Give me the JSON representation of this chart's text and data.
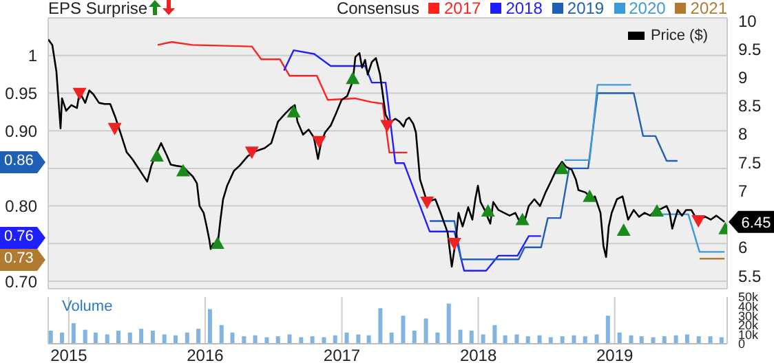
{
  "chart_data": [
    {
      "type": "line",
      "annotations": [
        "EPS Surprise",
        "0.86",
        "0.76",
        "0.73"
      ],
      "legend_title": "Consensus",
      "legend": "top",
      "grid": true,
      "tick_labels": "y",
      "xlim": [
        "2014-11-07",
        "2019-10-29"
      ],
      "xticks": [
        "2015",
        "2016",
        "2017",
        "2018",
        "2019"
      ],
      "ylim": [
        0.69,
        1.05
      ],
      "yticks": [
        1,
        0.95,
        {
          "value": 0.9,
          "label": "0.90"
        },
        {
          "value": 0.85,
          "label": null
        },
        {
          "value": 0.8,
          "label": "0.80"
        },
        {
          "value": 0.75,
          "label": null
        },
        {
          "value": 0.7,
          "label": "0.70"
        }
      ],
      "y2lim": [
        5.27,
        10.05
      ],
      "y2ticks": [
        10,
        9.5,
        9,
        8.5,
        8,
        7.5,
        7,
        6,
        5.5
      ],
      "series": [
        {
          "name": "2017",
          "color": "#ff2020",
          "x": [
            "2015-08-27",
            "2015-10-04",
            "2015-11-28",
            "2016-05-05",
            "2016-05-30",
            "2016-07-19",
            "2016-08-14",
            "2016-10-26",
            "2016-11-24",
            "2017-02-06",
            "2017-03-22",
            "2017-04-20",
            "2017-05-08",
            "2017-06-25"
          ],
          "values": [
            1.014,
            1.018,
            1.014,
            1.012,
            0.995,
            0.995,
            0.973,
            0.973,
            0.941,
            0.943,
            0.938,
            0.936,
            0.871,
            0.871
          ]
        },
        {
          "name": "2018",
          "color": "#2020ff",
          "x": [
            "2016-07-30",
            "2016-08-25",
            "2016-10-19",
            "2016-12-02",
            "2017-03-04",
            "2017-03-22",
            "2017-04-28",
            "2017-05-24",
            "2017-06-16",
            "2017-08-24",
            "2017-10-29",
            "2017-11-24",
            "2018-01-22",
            "2018-02-24",
            "2018-04-16",
            "2018-05-16",
            "2018-06-18"
          ],
          "values": [
            0.98,
            1.007,
            1.002,
            0.986,
            0.986,
            0.964,
            0.964,
            0.857,
            0.857,
            0.766,
            0.766,
            0.714,
            0.714,
            0.734,
            0.734,
            0.76,
            0.76
          ]
        },
        {
          "name": "2019",
          "color": "#1f5fb4",
          "x": [
            "2017-08-24",
            "2017-10-29",
            "2017-11-16",
            "2018-04-19",
            "2018-05-05",
            "2018-06-18",
            "2018-07-06",
            "2018-08-09",
            "2018-09-01",
            "2018-10-22",
            "2018-11-16",
            "2019-02-21",
            "2019-03-18",
            "2019-04-20",
            "2019-05-20",
            "2019-06-18"
          ],
          "values": [
            0.78,
            0.78,
            0.729,
            0.729,
            0.745,
            0.745,
            0.784,
            0.784,
            0.85,
            0.85,
            0.95,
            0.95,
            0.893,
            0.893,
            0.86,
            0.86
          ]
        },
        {
          "name": "2020",
          "color": "#3c9ad8",
          "x": [
            "2018-08-20",
            "2018-10-26",
            "2018-11-16",
            "2019-02-14",
            "2019-03-22",
            "2019-04-24",
            "2019-07-17",
            "2019-08-16",
            "2019-10-22"
          ],
          "values": [
            0.861,
            0.861,
            0.961,
            0.961,
            null,
            0.789,
            0.789,
            0.739,
            0.739
          ]
        },
        {
          "name": "2021",
          "color": "#b07a30",
          "x": [
            "2019-08-16",
            "2019-10-22"
          ],
          "values": [
            0.73,
            0.73
          ]
        },
        {
          "name": "Price ($)",
          "color": "#000000",
          "axis": "y2",
          "x": [
            "2014-11-07",
            "2014-11-18",
            "2014-11-29",
            "2014-12-10",
            "2014-12-14",
            "2014-12-25",
            "2015-01-08",
            "2015-01-23",
            "2015-01-30",
            "2015-02-14",
            "2015-02-25",
            "2015-03-08",
            "2015-03-23",
            "2015-04-07",
            "2015-04-22",
            "2015-05-06",
            "2015-05-14",
            "2015-05-21",
            "2015-06-05",
            "2015-06-20",
            "2015-07-04",
            "2015-07-19",
            "2015-07-30",
            "2015-08-10",
            "2015-08-25",
            "2015-09-05",
            "2015-09-20",
            "2015-10-01",
            "2015-10-16",
            "2015-11-03",
            "2015-11-18",
            "2015-11-29",
            "2015-12-10",
            "2015-12-17",
            "2015-12-28",
            "2016-01-05",
            "2016-01-12",
            "2016-01-16",
            "2016-01-23",
            "2016-02-03",
            "2016-02-11",
            "2016-02-18",
            "2016-02-29",
            "2016-03-18",
            "2016-04-02",
            "2016-04-24",
            "2016-05-16",
            "2016-06-08",
            "2016-06-26",
            "2016-07-14",
            "2016-08-02",
            "2016-08-17",
            "2016-08-28",
            "2016-09-04",
            "2016-09-19",
            "2016-10-04",
            "2016-10-18",
            "2016-10-29",
            "2016-11-06",
            "2016-11-17",
            "2016-12-02",
            "2016-12-16",
            "2016-12-31",
            "2017-01-15",
            "2017-01-30",
            "2017-02-06",
            "2017-02-17",
            "2017-02-24",
            "2017-03-04",
            "2017-03-11",
            "2017-03-22",
            "2017-04-02",
            "2017-04-13",
            "2017-04-28",
            "2017-05-09",
            "2017-05-24",
            "2017-06-04",
            "2017-06-15",
            "2017-06-22",
            "2017-06-30",
            "2017-07-11",
            "2017-07-18",
            "2017-07-29",
            "2017-08-17",
            "2017-09-08",
            "2017-09-22",
            "2017-10-11",
            "2017-10-22",
            "2017-11-02",
            "2017-11-09",
            "2017-11-20",
            "2017-12-05",
            "2017-12-16",
            "2017-12-24",
            "2017-12-31",
            "2018-01-07",
            "2018-01-18",
            "2018-02-02",
            "2018-02-10",
            "2018-02-24",
            "2018-03-11",
            "2018-03-26",
            "2018-04-10",
            "2018-04-24",
            "2018-05-05",
            "2018-05-16",
            "2018-05-31",
            "2018-06-15",
            "2018-06-30",
            "2018-07-14",
            "2018-07-29",
            "2018-08-13",
            "2018-08-24",
            "2018-09-08",
            "2018-09-19",
            "2018-09-26",
            "2018-10-15",
            "2018-11-02",
            "2018-11-09",
            "2018-11-24",
            "2018-12-02",
            "2018-12-09",
            "2018-12-16",
            "2018-12-24",
            "2019-01-07",
            "2019-01-22",
            "2019-02-06",
            "2019-02-21",
            "2019-03-07",
            "2019-03-22",
            "2019-04-06",
            "2019-04-21",
            "2019-05-05",
            "2019-05-20",
            "2019-05-28",
            "2019-06-04",
            "2019-06-11",
            "2019-06-19",
            "2019-06-30",
            "2019-07-11",
            "2019-07-25",
            "2019-08-09",
            "2019-09-01",
            "2019-09-15",
            "2019-09-30",
            "2019-10-22"
          ],
          "values": [
            9.67,
            9.57,
            9.1,
            8.1,
            8.63,
            8.41,
            8.51,
            8.46,
            8.74,
            8.55,
            8.77,
            8.7,
            8.55,
            8.53,
            8.53,
            8.29,
            8.13,
            7.99,
            7.68,
            7.56,
            7.42,
            7.27,
            7.16,
            7.44,
            7.68,
            7.84,
            7.63,
            7.46,
            7.44,
            7.42,
            7.32,
            7.25,
            7.13,
            6.73,
            6.61,
            6.37,
            6.14,
            5.97,
            6.07,
            6.02,
            6.49,
            6.85,
            7.09,
            7.35,
            7.44,
            7.61,
            7.7,
            7.75,
            7.84,
            8.22,
            8.36,
            8.46,
            8.51,
            8.22,
            7.99,
            8.08,
            7.94,
            7.56,
            7.84,
            8.03,
            8.15,
            8.36,
            8.6,
            8.67,
            8.93,
            9.36,
            9.43,
            9.17,
            9.31,
            9.05,
            9.27,
            9.34,
            9.05,
            8.34,
            8.2,
            8.27,
            8.22,
            8.13,
            8.25,
            8.29,
            8.18,
            8.03,
            7.2,
            6.8,
            6.85,
            6.61,
            6.26,
            5.66,
            6.14,
            6.61,
            6.37,
            6.71,
            6.49,
            6.85,
            7.09,
            6.8,
            6.66,
            6.42,
            6.8,
            6.66,
            6.61,
            6.56,
            6.61,
            6.42,
            6.47,
            6.73,
            6.85,
            6.73,
            6.97,
            7.16,
            7.37,
            7.51,
            7.42,
            7.37,
            7.2,
            7.01,
            6.97,
            6.85,
            6.9,
            6.61,
            6.02,
            5.83,
            6.37,
            6.61,
            6.85,
            6.9,
            6.49,
            6.66,
            6.54,
            6.61,
            6.56,
            6.66,
            6.68,
            6.73,
            6.61,
            6.33,
            6.49,
            6.66,
            6.56,
            6.66,
            6.66,
            6.49,
            6.54,
            6.49,
            6.56,
            6.45
          ],
          "value_labels": [
            null,
            null,
            null,
            null,
            null,
            null,
            null,
            null,
            null,
            null,
            null,
            null,
            null,
            null,
            null,
            null,
            null,
            null,
            null,
            null,
            null,
            null,
            null,
            null,
            null,
            null,
            null,
            null,
            null,
            null,
            null,
            null,
            null,
            null,
            null,
            null,
            null,
            null,
            null,
            null,
            null,
            null,
            null,
            null,
            null,
            null,
            null,
            null,
            null,
            null,
            null,
            null,
            null,
            null,
            null,
            null,
            null,
            null,
            null,
            null,
            null,
            null,
            null,
            null,
            null,
            null,
            null,
            null,
            null,
            null,
            null,
            null,
            null,
            null,
            null,
            null,
            null,
            null,
            null,
            null,
            null,
            null,
            null,
            null,
            null,
            null,
            null,
            null,
            null,
            null,
            null,
            null,
            null,
            null,
            null,
            null,
            null,
            null,
            null,
            null,
            null,
            null,
            null,
            null,
            null,
            null,
            null,
            null,
            null,
            null,
            null,
            null,
            null,
            null,
            null,
            null,
            null,
            null,
            null,
            null,
            null,
            null,
            null,
            null,
            null,
            null,
            null,
            null,
            null,
            null,
            null,
            null,
            null,
            null,
            null,
            null,
            null,
            null,
            null,
            null,
            null,
            null,
            null,
            null,
            null,
            "6.45"
          ]
        },
        {
          "type": "scatter",
          "color": "#1a8a1a",
          "axis": "y2",
          "marker": "triangle",
          "x": [
            "2015-08-25",
            "2015-11-03",
            "2016-02-03",
            "2016-08-25",
            "2017-01-30",
            "2018-01-27",
            "2018-04-29",
            "2018-08-13",
            "2018-10-26",
            "2019-01-25",
            "2019-04-24",
            "2019-10-24"
          ],
          "values": [
            7.61,
            7.35,
            6.07,
            8.39,
            8.98,
            6.64,
            6.49,
            7.39,
            6.9,
            6.3,
            6.64,
            6.33
          ]
        },
        {
          "type": "scatter",
          "color": "#ee2222",
          "axis": "y2",
          "marker": "triangle",
          "x": [
            "2015-01-30",
            "2015-05-04",
            "2016-05-05",
            "2016-11-01",
            "2017-05-02",
            "2017-08-17",
            "2017-10-29",
            "2019-08-13"
          ],
          "values": [
            8.72,
            8.1,
            7.68,
            7.87,
            8.15,
            6.8,
            6.07,
            6.47
          ]
        }
      ]
    },
    {
      "type": "bar",
      "title": "Volume",
      "grid": "x",
      "color": "#82b4e2",
      "xlim": [
        "2014-11-07",
        "2019-10-29"
      ],
      "xticks": [
        "2015",
        "2016",
        "2017",
        "2018",
        "2019"
      ],
      "ylim": [
        0,
        50000
      ],
      "yticks": [
        0,
        {
          "value": 10000,
          "label": "10k"
        },
        {
          "value": 20000,
          "label": "20k"
        },
        {
          "value": 30000,
          "label": "30k"
        },
        {
          "value": 40000,
          "label": "40k"
        },
        {
          "value": 50000,
          "label": "50k"
        }
      ],
      "x": [
        "2014-11-15",
        "2014-12-15",
        "2015-01-15",
        "2015-02-15",
        "2015-03-15",
        "2015-04-15",
        "2015-05-15",
        "2015-06-15",
        "2015-07-15",
        "2015-08-15",
        "2015-09-15",
        "2015-10-15",
        "2015-11-15",
        "2015-12-15",
        "2016-01-15",
        "2016-02-15",
        "2016-03-15",
        "2016-04-15",
        "2016-05-15",
        "2016-06-15",
        "2016-07-15",
        "2016-08-15",
        "2016-09-15",
        "2016-10-15",
        "2016-11-15",
        "2016-12-15",
        "2017-01-15",
        "2017-02-15",
        "2017-03-15",
        "2017-04-15",
        "2017-05-15",
        "2017-06-15",
        "2017-07-15",
        "2017-08-15",
        "2017-09-15",
        "2017-10-15",
        "2017-11-15",
        "2017-12-15",
        "2018-01-15",
        "2018-02-15",
        "2018-03-15",
        "2018-04-15",
        "2018-05-15",
        "2018-06-15",
        "2018-07-15",
        "2018-08-15",
        "2018-09-15",
        "2018-10-15",
        "2018-11-15",
        "2018-12-15",
        "2019-01-15",
        "2019-02-15",
        "2019-03-15",
        "2019-04-15",
        "2019-05-15",
        "2019-06-15",
        "2019-07-15",
        "2019-08-15",
        "2019-09-15",
        "2019-10-15"
      ],
      "values": [
        14000,
        12000,
        22000,
        15000,
        12000,
        10000,
        14000,
        12000,
        16000,
        14000,
        10000,
        9000,
        12000,
        16000,
        37000,
        20000,
        12000,
        8000,
        9000,
        7000,
        8000,
        10000,
        7000,
        8000,
        7000,
        9000,
        12000,
        10000,
        9000,
        38000,
        12000,
        30000,
        14000,
        27000,
        12000,
        43000,
        15000,
        14000,
        10000,
        20000,
        9000,
        10000,
        8000,
        9000,
        7000,
        8000,
        9000,
        8000,
        10000,
        30000,
        12000,
        9000,
        8000,
        7000,
        8000,
        9000,
        10000,
        8000,
        8000,
        7000
      ]
    }
  ]
}
